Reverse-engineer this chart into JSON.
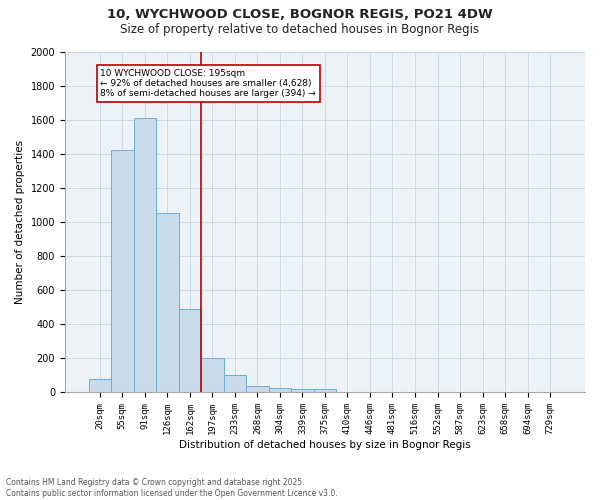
{
  "title1": "10, WYCHWOOD CLOSE, BOGNOR REGIS, PO21 4DW",
  "title2": "Size of property relative to detached houses in Bognor Regis",
  "xlabel": "Distribution of detached houses by size in Bognor Regis",
  "ylabel": "Number of detached properties",
  "footer1": "Contains HM Land Registry data © Crown copyright and database right 2025.",
  "footer2": "Contains public sector information licensed under the Open Government Licence v3.0.",
  "bar_labels": [
    "20sqm",
    "55sqm",
    "91sqm",
    "126sqm",
    "162sqm",
    "197sqm",
    "233sqm",
    "268sqm",
    "304sqm",
    "339sqm",
    "375sqm",
    "410sqm",
    "446sqm",
    "481sqm",
    "516sqm",
    "552sqm",
    "587sqm",
    "623sqm",
    "658sqm",
    "694sqm",
    "729sqm"
  ],
  "bar_values": [
    80,
    1420,
    1610,
    1055,
    490,
    200,
    100,
    38,
    28,
    20,
    20,
    0,
    0,
    0,
    0,
    0,
    0,
    0,
    0,
    0,
    0
  ],
  "bar_color": "#c9daea",
  "bar_edge_color": "#6aafd6",
  "vline_x": 4.5,
  "vline_color": "#bb0000",
  "annotation_text": "10 WYCHWOOD CLOSE: 195sqm\n← 92% of detached houses are smaller (4,628)\n8% of semi-detached houses are larger (394) →",
  "annotation_box_color": "#bb0000",
  "ylim": [
    0,
    2000
  ],
  "yticks": [
    0,
    200,
    400,
    600,
    800,
    1000,
    1200,
    1400,
    1600,
    1800,
    2000
  ],
  "grid_color": "#d0d8e4",
  "background_color": "#edf2f7"
}
